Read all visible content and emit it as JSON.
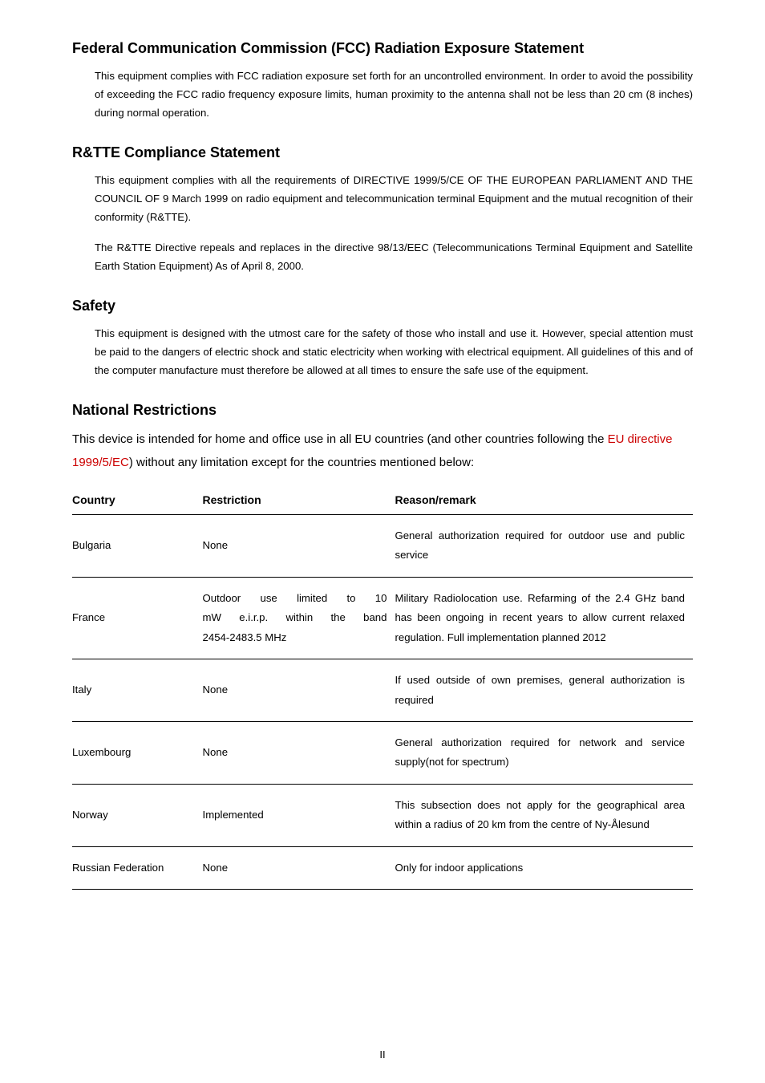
{
  "sections": {
    "fcc": {
      "title": "Federal Communication Commission (FCC) Radiation Exposure Statement",
      "p1": "This equipment complies with FCC radiation exposure set forth for an uncontrolled environment. In order to avoid the possibility of exceeding the FCC radio frequency exposure limits, human proximity to the antenna shall not be less than 20 cm (8 inches) during normal operation."
    },
    "rtte": {
      "title": "R&TTE Compliance Statement",
      "p1": "This equipment complies with all the requirements of DIRECTIVE 1999/5/CE OF THE EUROPEAN PARLIAMENT AND THE COUNCIL OF 9 March 1999 on radio equipment and telecommunication terminal Equipment and the mutual recognition of their conformity (R&TTE).",
      "p2": "The R&TTE Directive repeals and replaces in the directive 98/13/EEC (Telecommunications Terminal Equipment and Satellite Earth Station Equipment) As of April 8, 2000."
    },
    "safety": {
      "title": "Safety",
      "p1": "This equipment is designed with the utmost care for the safety of those who install and use it. However, special attention must be paid to the dangers of electric shock and static electricity when working with electrical equipment. All guidelines of this and of the computer manufacture must therefore be allowed at all times to ensure the safe use of the equipment."
    },
    "national": {
      "title": "National Restrictions",
      "intro_pre": "This device is intended for home and office use in all EU countries (and other countries following the ",
      "intro_red": "EU directive 1999/5/EC",
      "intro_post": ") without any limitation except for the countries mentioned below:",
      "headers": {
        "country": "Country",
        "restriction": "Restriction",
        "reason": "Reason/remark"
      },
      "rows": [
        {
          "country": "Bulgaria",
          "restriction": "None",
          "reason": "General authorization required for outdoor use and public service"
        },
        {
          "country": "France",
          "restriction_l1": "Outdoor use limited to 10",
          "restriction_l2": "mW e.i.r.p. within the band",
          "restriction_l3": "2454-2483.5 MHz",
          "reason": "Military Radiolocation use. Refarming of the 2.4 GHz band has been ongoing in recent years to allow current relaxed regulation. Full implementation planned 2012"
        },
        {
          "country": "Italy",
          "restriction": "None",
          "reason": "If used outside of own premises, general authorization is required"
        },
        {
          "country": "Luxembourg",
          "restriction": "None",
          "reason": "General authorization required for network and service supply(not for spectrum)"
        },
        {
          "country": "Norway",
          "restriction": "Implemented",
          "reason": "This subsection does not apply for the geographical area within a radius of 20 km from the centre of Ny-Ålesund"
        },
        {
          "country": "Russian Federation",
          "restriction": "None",
          "reason": "Only for indoor applications"
        }
      ]
    }
  },
  "pagenum": "II"
}
